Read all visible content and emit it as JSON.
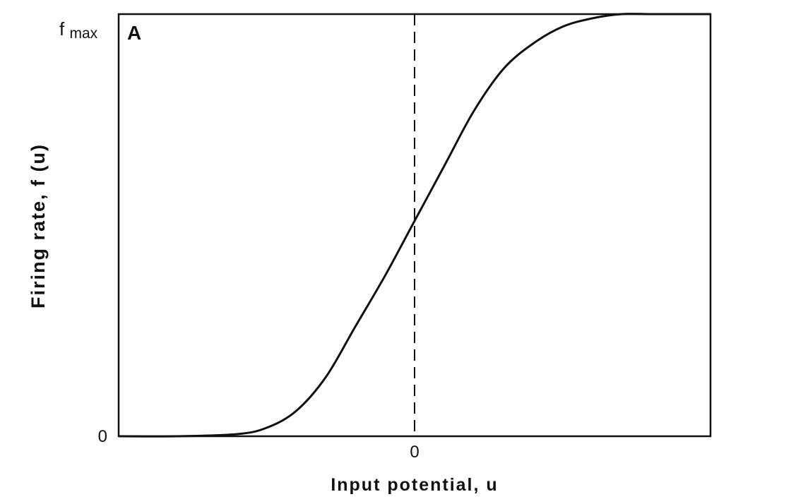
{
  "chart_data": {
    "type": "line",
    "panel_label": "A",
    "title": "",
    "xlabel": "Input potential,  u",
    "ylabel": "Firing rate, f (u)",
    "xlim": [
      -5,
      5
    ],
    "ylim": [
      0,
      1
    ],
    "x_ticks": [
      {
        "value": 0,
        "label": "0"
      }
    ],
    "y_ticks": [
      {
        "value": 0,
        "label": "0"
      },
      {
        "value": 1,
        "label_main": "f",
        "label_sub": "max"
      }
    ],
    "reference_line": {
      "x": 0,
      "style": "dashed"
    },
    "grid": false,
    "series": [
      {
        "x": [
          -5,
          -4,
          -3,
          -2.5,
          -2,
          -1.5,
          -1,
          -0.5,
          0,
          0.5,
          1,
          1.5,
          2,
          2.5,
          3,
          3.5,
          4,
          4.5,
          5
        ],
        "y": [
          0.0,
          0.0,
          0.005,
          0.02,
          0.06,
          0.14,
          0.26,
          0.38,
          0.51,
          0.64,
          0.77,
          0.87,
          0.93,
          0.97,
          0.99,
          1.0,
          1.0,
          1.0,
          1.0
        ]
      }
    ],
    "colors": {
      "line": "#111111",
      "axes": "#111111",
      "background": "#ffffff"
    }
  }
}
